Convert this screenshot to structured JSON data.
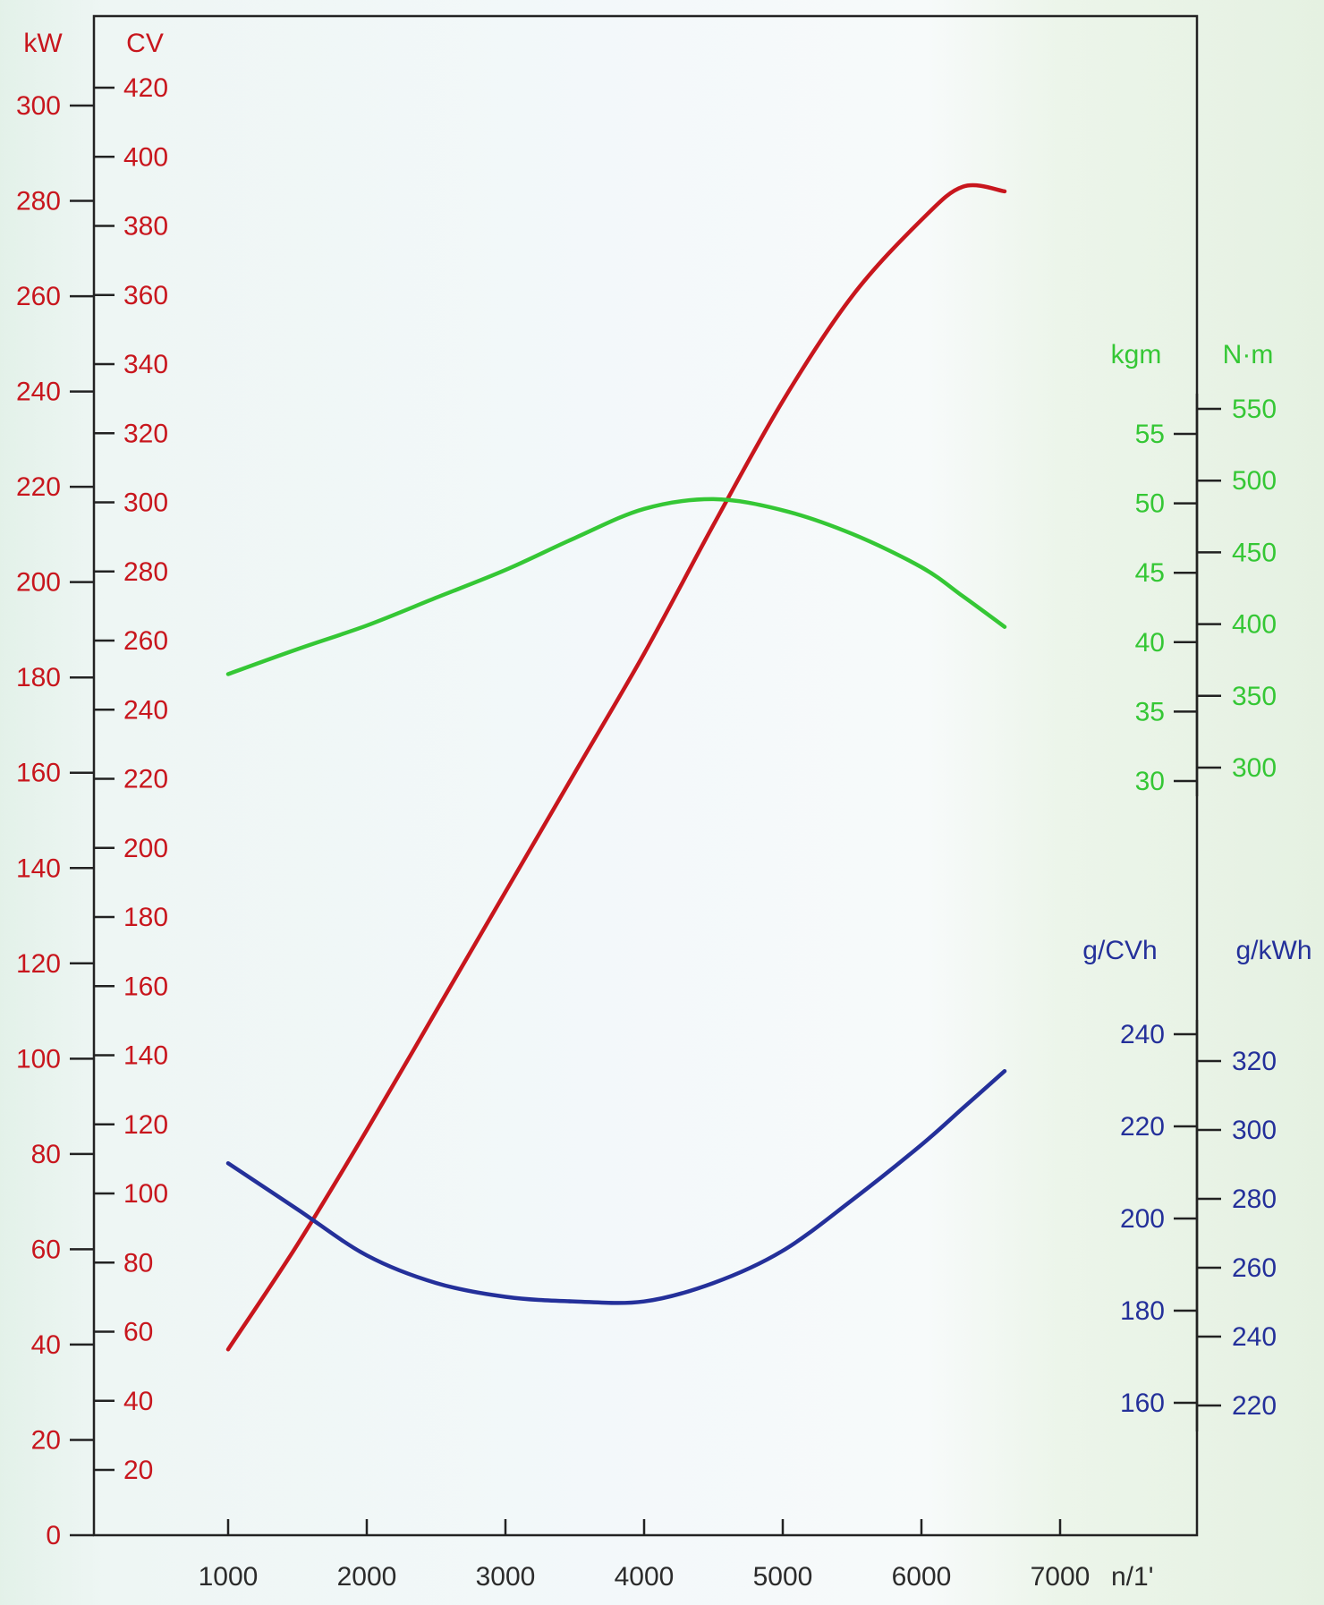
{
  "chart_data": {
    "type": "line",
    "title": "",
    "xlabel": "n/1'",
    "x_ticks": [
      "1000",
      "2000",
      "3000",
      "4000",
      "5000",
      "6000",
      "7000"
    ],
    "xlim": [
      0,
      7000
    ],
    "grid": false,
    "colors": {
      "power": "#c8161d",
      "torque": "#35c735",
      "consumption": "#24309a",
      "axis": "#222222"
    },
    "axes": {
      "kw": {
        "unit": "kW",
        "range": [
          0,
          300
        ],
        "ticks": [
          "300",
          "280",
          "260",
          "240",
          "220",
          "200",
          "180",
          "160",
          "140",
          "120",
          "100",
          "80",
          "60",
          "40",
          "20",
          "0"
        ]
      },
      "cv": {
        "unit": "CV",
        "range": [
          20,
          420
        ],
        "ticks": [
          "420",
          "400",
          "380",
          "360",
          "340",
          "320",
          "300",
          "280",
          "260",
          "240",
          "220",
          "200",
          "180",
          "160",
          "140",
          "120",
          "100",
          "80",
          "60",
          "40",
          "20"
        ]
      },
      "kgm": {
        "unit": "kgm",
        "range": [
          30,
          55
        ],
        "ticks": [
          "55",
          "50",
          "45",
          "40",
          "35",
          "30"
        ]
      },
      "nm": {
        "unit": "N·m",
        "range": [
          300,
          550
        ],
        "ticks": [
          "550",
          "500",
          "450",
          "400",
          "350",
          "300"
        ]
      },
      "gcvh": {
        "unit": "g/CVh",
        "range": [
          160,
          240
        ],
        "ticks": [
          "240",
          "220",
          "200",
          "180",
          "160"
        ]
      },
      "gkwh": {
        "unit": "g/kWh",
        "range": [
          220,
          320
        ],
        "ticks": [
          "320",
          "300",
          "280",
          "260",
          "240",
          "220"
        ]
      }
    },
    "series": [
      {
        "key": "power",
        "axis": "kw",
        "points": [
          [
            1000,
            39
          ],
          [
            1500,
            61
          ],
          [
            2000,
            85
          ],
          [
            2500,
            110
          ],
          [
            3000,
            135
          ],
          [
            3500,
            160
          ],
          [
            4000,
            185
          ],
          [
            4500,
            212
          ],
          [
            5000,
            238
          ],
          [
            5500,
            260
          ],
          [
            6000,
            276
          ],
          [
            6300,
            283
          ],
          [
            6600,
            282
          ]
        ]
      },
      {
        "key": "torque",
        "axis": "kgm",
        "points": [
          [
            1000,
            37.7
          ],
          [
            1500,
            39.5
          ],
          [
            2000,
            41.2
          ],
          [
            2500,
            43.2
          ],
          [
            3000,
            45.2
          ],
          [
            3500,
            47.5
          ],
          [
            4000,
            49.6
          ],
          [
            4500,
            50.3
          ],
          [
            5000,
            49.5
          ],
          [
            5500,
            47.8
          ],
          [
            6000,
            45.4
          ],
          [
            6300,
            43.3
          ],
          [
            6600,
            41.1
          ]
        ]
      },
      {
        "key": "consumption",
        "axis": "gcvh",
        "points": [
          [
            1000,
            212
          ],
          [
            1500,
            202
          ],
          [
            2000,
            192
          ],
          [
            2500,
            186
          ],
          [
            3000,
            183
          ],
          [
            3500,
            182
          ],
          [
            4000,
            182
          ],
          [
            4500,
            186
          ],
          [
            5000,
            193
          ],
          [
            5500,
            204
          ],
          [
            6000,
            216
          ],
          [
            6300,
            224
          ],
          [
            6600,
            232
          ]
        ]
      }
    ]
  }
}
